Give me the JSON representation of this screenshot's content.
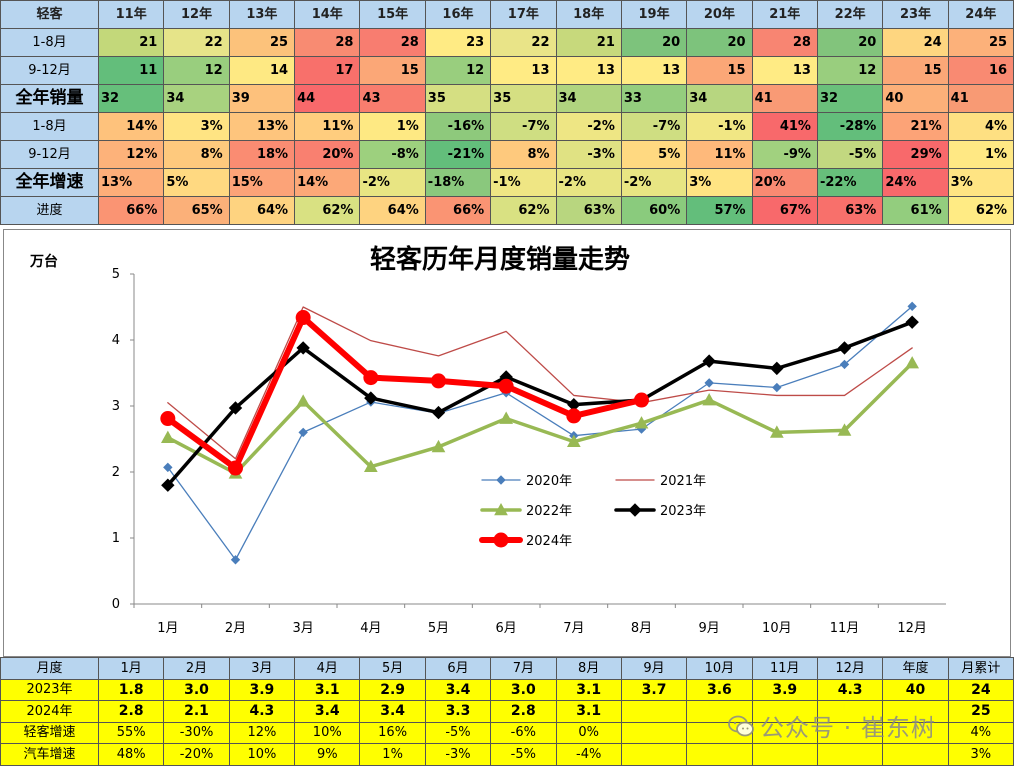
{
  "top_table": {
    "corner": "轻客",
    "years": [
      "11年",
      "12年",
      "13年",
      "14年",
      "15年",
      "16年",
      "17年",
      "18年",
      "19年",
      "20年",
      "21年",
      "22年",
      "23年",
      "24年"
    ],
    "rows": [
      {
        "label": "1-8月",
        "big": false,
        "align": "c",
        "values": [
          "21",
          "22",
          "25",
          "28",
          "28",
          "23",
          "22",
          "21",
          "20",
          "20",
          "28",
          "20",
          "24",
          "25"
        ],
        "colors": [
          "#c3d87a",
          "#e6e489",
          "#fcc27b",
          "#f88b72",
          "#f87d70",
          "#ffeb84",
          "#e9e488",
          "#c7d97c",
          "#7dc37c",
          "#7dc37c",
          "#f88572",
          "#82c47c",
          "#fed680",
          "#fcb17a"
        ]
      },
      {
        "label": "9-12月",
        "big": false,
        "align": "c",
        "values": [
          "11",
          "12",
          "14",
          "17",
          "15",
          "12",
          "13",
          "13",
          "13",
          "15",
          "13",
          "12",
          "15",
          "16"
        ],
        "colors": [
          "#63be7b",
          "#99ce7e",
          "#fee983",
          "#f8706b",
          "#fba777",
          "#99ce7e",
          "#ffeb84",
          "#ffeb84",
          "#ffeb84",
          "#fba777",
          "#ffeb84",
          "#99ce7e",
          "#fba777",
          "#f98a72"
        ]
      },
      {
        "label": "全年销量",
        "big": true,
        "align": "l",
        "values": [
          "32",
          "34",
          "39",
          "44",
          "43",
          "35",
          "35",
          "34",
          "33",
          "34",
          "41",
          "32",
          "40",
          "41"
        ],
        "colors": [
          "#66bf7b",
          "#a8d27f",
          "#fdc17c",
          "#f8696b",
          "#f87d6e",
          "#d5df82",
          "#d5df82",
          "#b0d47f",
          "#94cd7e",
          "#b7d680",
          "#f99a75",
          "#6ac07b",
          "#fcb079",
          "#f89a74"
        ]
      },
      {
        "label": "1-8月",
        "big": false,
        "align": "c",
        "values": [
          "14%",
          "3%",
          "13%",
          "11%",
          "1%",
          "-16%",
          "-7%",
          "-2%",
          "-7%",
          "-1%",
          "41%",
          "-28%",
          "21%",
          "4%"
        ],
        "colors": [
          "#fec27c",
          "#ffe483",
          "#fec57d",
          "#ffcd7e",
          "#fee983",
          "#8ec97c",
          "#cfde82",
          "#eee684",
          "#cfde82",
          "#f1e784",
          "#f8696b",
          "#63be7b",
          "#fca377",
          "#fee082"
        ]
      },
      {
        "label": "9-12月",
        "big": false,
        "align": "c",
        "values": [
          "12%",
          "8%",
          "18%",
          "20%",
          "-8%",
          "-21%",
          "8%",
          "-3%",
          "5%",
          "11%",
          "-9%",
          "-5%",
          "29%",
          "1%"
        ],
        "colors": [
          "#fdb27a",
          "#fec97d",
          "#fa8c72",
          "#f98070",
          "#9dd07e",
          "#63be7b",
          "#fec97d",
          "#e0e283",
          "#ffd981",
          "#feb97b",
          "#a1d17f",
          "#c2d880",
          "#f8696b",
          "#ffe884"
        ]
      },
      {
        "label": "全年增速",
        "big": true,
        "align": "l",
        "values": [
          "13%",
          "5%",
          "15%",
          "14%",
          "-2%",
          "-18%",
          "-1%",
          "-2%",
          "-2%",
          "3%",
          "20%",
          "-22%",
          "24%",
          "3%"
        ],
        "colors": [
          "#fdae79",
          "#ffd981",
          "#fca378",
          "#fca878",
          "#e8e583",
          "#8ac87d",
          "#efe684",
          "#e8e583",
          "#e8e583",
          "#ffe483",
          "#f98a72",
          "#67bf7b",
          "#f8696b",
          "#ffe483"
        ]
      },
      {
        "label": "进度",
        "big": false,
        "align": "c",
        "values": [
          "66%",
          "65%",
          "64%",
          "62%",
          "64%",
          "66%",
          "62%",
          "63%",
          "60%",
          "57%",
          "67%",
          "63%",
          "61%",
          "62%"
        ],
        "colors": [
          "#fa9473",
          "#fbb079",
          "#fed380",
          "#d9e182",
          "#fed380",
          "#fa9473",
          "#d9e182",
          "#b8d67f",
          "#8acb7d",
          "#63be7b",
          "#f8696b",
          "#f8706b",
          "#93cd7e",
          "#ffeb84"
        ]
      }
    ]
  },
  "chart_data": {
    "type": "line",
    "title": "轻客历年月度销量走势",
    "ylabel": "万台",
    "ylim": [
      0,
      5
    ],
    "yticks": [
      "0",
      "1",
      "2",
      "3",
      "4",
      "5"
    ],
    "categories": [
      "1月",
      "2月",
      "3月",
      "4月",
      "5月",
      "6月",
      "7月",
      "8月",
      "9月",
      "10月",
      "11月",
      "12月"
    ],
    "series": [
      {
        "name": "2020年",
        "color": "#4a7ebb",
        "width": 1.3,
        "marker": "diamond",
        "msize": 4,
        "values": [
          2.07,
          0.67,
          2.6,
          3.06,
          2.89,
          3.2,
          2.55,
          2.65,
          3.35,
          3.28,
          3.63,
          4.51
        ]
      },
      {
        "name": "2021年",
        "color": "#be4b48",
        "width": 1.3,
        "marker": "none",
        "msize": 0,
        "values": [
          3.05,
          2.2,
          4.5,
          3.99,
          3.76,
          4.13,
          3.16,
          3.05,
          3.24,
          3.16,
          3.16,
          3.88
        ]
      },
      {
        "name": "2022年",
        "color": "#98b954",
        "width": 3.5,
        "marker": "triangle",
        "msize": 6,
        "values": [
          2.52,
          1.98,
          3.07,
          2.08,
          2.38,
          2.81,
          2.46,
          2.74,
          3.09,
          2.6,
          2.63,
          3.65
        ]
      },
      {
        "name": "2023年",
        "color": "#000000",
        "width": 3.5,
        "marker": "diamond",
        "msize": 6,
        "values": [
          1.8,
          2.97,
          3.88,
          3.12,
          2.9,
          3.44,
          3.02,
          3.09,
          3.68,
          3.57,
          3.88,
          4.27
        ]
      },
      {
        "name": "2024年",
        "color": "#ff0000",
        "width": 6,
        "marker": "circle",
        "msize": 7,
        "values": [
          2.81,
          2.06,
          4.34,
          3.43,
          3.38,
          3.3,
          2.85,
          3.09,
          null,
          null,
          null,
          null
        ]
      }
    ]
  },
  "bottom_table": {
    "header": [
      "月度",
      "1月",
      "2月",
      "3月",
      "4月",
      "5月",
      "6月",
      "7月",
      "8月",
      "9月",
      "10月",
      "11月",
      "12月",
      "年度",
      "月累计"
    ],
    "rows": [
      {
        "label": "2023年",
        "style": "y b",
        "values": [
          "1.8",
          "3.0",
          "3.9",
          "3.1",
          "2.9",
          "3.4",
          "3.0",
          "3.1",
          "3.7",
          "3.6",
          "3.9",
          "4.3",
          "40",
          "24"
        ]
      },
      {
        "label": "2024年",
        "style": "y b",
        "values": [
          "2.8",
          "2.1",
          "4.3",
          "3.4",
          "3.4",
          "3.3",
          "2.8",
          "3.1",
          "",
          "",
          "",
          "",
          "",
          "25"
        ]
      },
      {
        "label": "轻客增速",
        "style": "y n",
        "values": [
          "55%",
          "-30%",
          "12%",
          "10%",
          "16%",
          "-5%",
          "-6%",
          "0%",
          "",
          "",
          "",
          "",
          "",
          "4%"
        ]
      },
      {
        "label": "汽车增速",
        "style": "y n",
        "values": [
          "48%",
          "-20%",
          "10%",
          "9%",
          "1%",
          "-3%",
          "-5%",
          "-4%",
          "",
          "",
          "",
          "",
          "",
          "3%"
        ]
      }
    ]
  },
  "watermark": "公众号 · 崔东树"
}
